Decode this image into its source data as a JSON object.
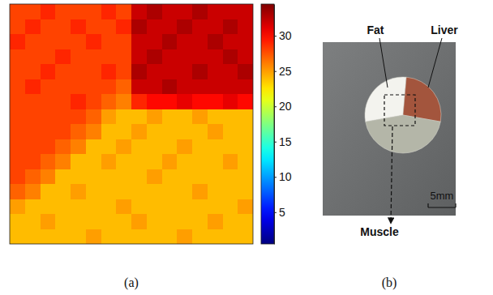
{
  "chart_data": {
    "type": "heatmap",
    "tick_labels": false,
    "cells": [
      [
        28,
        28,
        29,
        28,
        28,
        28,
        29,
        28,
        32,
        33,
        32,
        32,
        33,
        32,
        32,
        32
      ],
      [
        28,
        29,
        28,
        28,
        29,
        28,
        28,
        29,
        33,
        32,
        32,
        33,
        32,
        32,
        33,
        32
      ],
      [
        29,
        28,
        28,
        28,
        28,
        29,
        28,
        28,
        32,
        32,
        33,
        32,
        32,
        33,
        32,
        32
      ],
      [
        28,
        28,
        28,
        29,
        28,
        28,
        28,
        28,
        32,
        33,
        32,
        32,
        32,
        32,
        33,
        32
      ],
      [
        28,
        28,
        29,
        28,
        28,
        28,
        29,
        28,
        33,
        32,
        32,
        32,
        33,
        32,
        32,
        33
      ],
      [
        28,
        29,
        28,
        28,
        28,
        28,
        28,
        27,
        32,
        32,
        33,
        32,
        32,
        32,
        32,
        32
      ],
      [
        28,
        28,
        28,
        28,
        29,
        28,
        27,
        26,
        29,
        30,
        30,
        31,
        30,
        30,
        31,
        30
      ],
      [
        28,
        28,
        28,
        28,
        28,
        27,
        25,
        24,
        24,
        25,
        24,
        24,
        25,
        24,
        24,
        24
      ],
      [
        28,
        28,
        28,
        28,
        27,
        26,
        24,
        24,
        25,
        24,
        24,
        24,
        24,
        25,
        24,
        24
      ],
      [
        28,
        28,
        28,
        27,
        26,
        24,
        24,
        25,
        24,
        24,
        24,
        25,
        24,
        24,
        24,
        24
      ],
      [
        28,
        28,
        27,
        26,
        24,
        24,
        25,
        24,
        24,
        24,
        25,
        24,
        24,
        24,
        25,
        24
      ],
      [
        28,
        27,
        26,
        24,
        24,
        24,
        24,
        24,
        24,
        25,
        24,
        24,
        24,
        24,
        24,
        24
      ],
      [
        27,
        26,
        24,
        24,
        25,
        24,
        24,
        24,
        24,
        24,
        24,
        24,
        25,
        24,
        24,
        24
      ],
      [
        25,
        24,
        24,
        24,
        24,
        24,
        24,
        25,
        24,
        24,
        24,
        24,
        24,
        24,
        24,
        25
      ],
      [
        24,
        24,
        25,
        24,
        24,
        24,
        24,
        24,
        25,
        24,
        24,
        24,
        24,
        25,
        24,
        24
      ],
      [
        24,
        24,
        24,
        24,
        24,
        25,
        24,
        24,
        24,
        24,
        24,
        25,
        24,
        24,
        24,
        24
      ]
    ],
    "color_range": [
      0.5,
      34.5
    ],
    "color_ticks": [
      5,
      10,
      15,
      20,
      25,
      30
    ]
  },
  "photo": {
    "labels": [
      "Fat",
      "Liver",
      "Muscle"
    ],
    "scale_bar": "5mm"
  },
  "captions": [
    "(a)",
    "(b)"
  ]
}
